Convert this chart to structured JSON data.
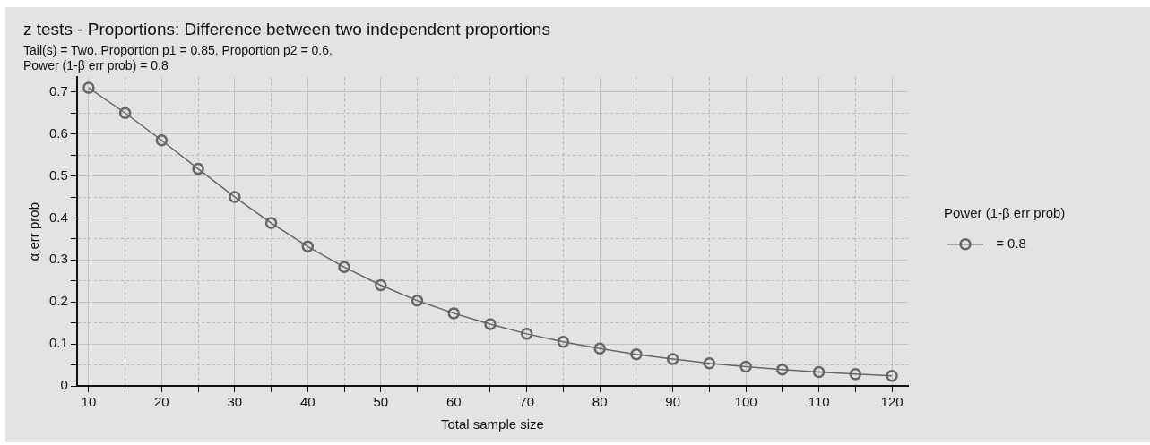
{
  "chart_data": {
    "type": "line",
    "title": "z tests - Proportions: Difference between two independent proportions",
    "subtitle": "Tail(s) = Two. Proportion p1 = 0.85. Proportion p2 = 0.6.\nPower (1-β err prob) = 0.8",
    "xlabel": "Total sample size",
    "ylabel": "α err prob",
    "legend_title": "Power (1-β err prob)",
    "x": [
      10,
      15,
      20,
      25,
      30,
      35,
      40,
      45,
      50,
      55,
      60,
      65,
      70,
      75,
      80,
      85,
      90,
      95,
      100,
      105,
      110,
      115,
      120
    ],
    "series": [
      {
        "name": " = 0.8",
        "color": "#666666",
        "values": [
          0.71,
          0.65,
          0.585,
          0.517,
          0.45,
          0.388,
          0.332,
          0.283,
          0.24,
          0.203,
          0.173,
          0.147,
          0.124,
          0.105,
          0.089,
          0.075,
          0.064,
          0.054,
          0.046,
          0.039,
          0.033,
          0.028,
          0.024
        ]
      }
    ],
    "xlim": [
      8.4,
      122.2
    ],
    "xticks": [
      10,
      {
        "value": 15,
        "label": null
      },
      20,
      {
        "value": 25,
        "label": null
      },
      30,
      {
        "value": 35,
        "label": null
      },
      40,
      {
        "value": 45,
        "label": null
      },
      50,
      {
        "value": 55,
        "label": null
      },
      60,
      {
        "value": 65,
        "label": null
      },
      70,
      {
        "value": 75,
        "label": null
      },
      80,
      {
        "value": 85,
        "label": null
      },
      90,
      {
        "value": 95,
        "label": null
      },
      100,
      {
        "value": 105,
        "label": null
      },
      110,
      {
        "value": 115,
        "label": null
      },
      120
    ],
    "ylim": [
      0,
      0.735
    ],
    "yticks": [
      0,
      {
        "value": 0.05,
        "label": null
      },
      0.1,
      {
        "value": 0.15,
        "label": null
      },
      0.2,
      {
        "value": 0.25,
        "label": null
      },
      0.3,
      {
        "value": 0.35,
        "label": null
      },
      0.4,
      {
        "value": 0.45,
        "label": null
      },
      0.5,
      {
        "value": 0.55,
        "label": null
      },
      0.6,
      {
        "value": 0.65,
        "label": null
      },
      0.7
    ],
    "grid": true,
    "legend": "right",
    "marker": "circle",
    "line_style": "solid"
  }
}
